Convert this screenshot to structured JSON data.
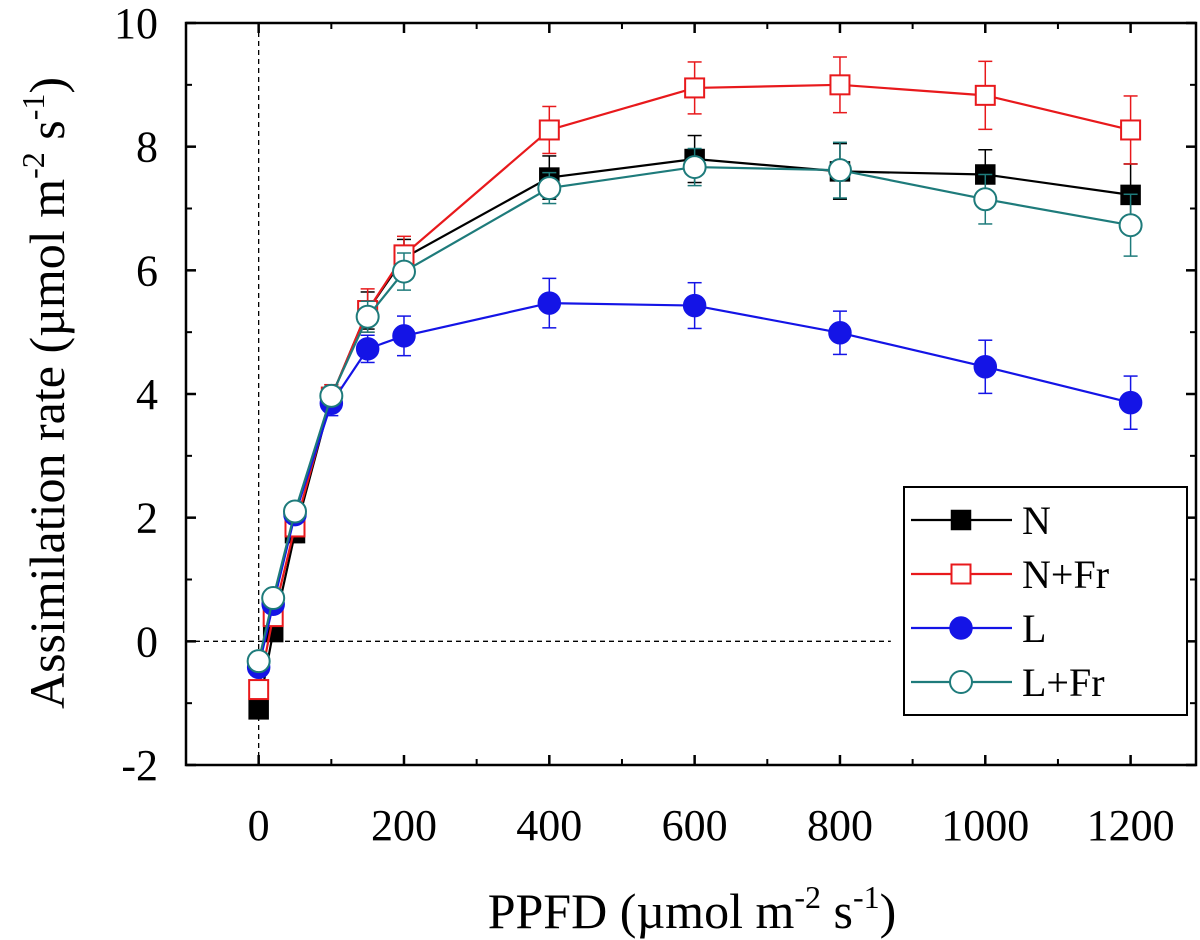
{
  "chart_data": {
    "type": "line",
    "title": "",
    "xlabel": {
      "main": "PPFD (µmol m",
      "exp1": "-2",
      "mid": " s",
      "exp2": "-1",
      "end": ")"
    },
    "ylabel": {
      "main": "Assimilation rate (µmol m",
      "exp1": "-2",
      "mid": " s",
      "exp2": "-1",
      "end": ")"
    },
    "xlim": [
      -100,
      1290
    ],
    "ylim": [
      -2,
      10
    ],
    "xticks": [
      0,
      200,
      400,
      600,
      800,
      1000,
      1200
    ],
    "yticks": [
      -2,
      0,
      2,
      4,
      6,
      8,
      10
    ],
    "xtick_labels": [
      "0",
      "200",
      "400",
      "600",
      "800",
      "1000",
      "1200"
    ],
    "ytick_labels": [
      "-2",
      "0",
      "2",
      "4",
      "6",
      "8",
      "10"
    ],
    "reference_lines": [
      {
        "axis": "x",
        "value": 0
      },
      {
        "axis": "y",
        "value": 0,
        "x_end": 870
      }
    ],
    "legend_position": "bottom-right",
    "x": [
      0,
      20,
      50,
      100,
      150,
      200,
      400,
      600,
      800,
      1000,
      1200
    ],
    "series": [
      {
        "name": "N",
        "color": "#000000",
        "marker": "square-filled",
        "values": [
          -1.1,
          0.15,
          1.75,
          3.95,
          5.35,
          6.2,
          7.5,
          7.8,
          7.6,
          7.55,
          7.22
        ],
        "errors": [
          0.12,
          0.1,
          0.15,
          0.2,
          0.3,
          0.3,
          0.35,
          0.38,
          0.45,
          0.4,
          0.5
        ]
      },
      {
        "name": "N+Fr",
        "color": "#e8191c",
        "marker": "square-open",
        "values": [
          -0.78,
          0.4,
          1.85,
          3.95,
          5.35,
          6.25,
          8.27,
          8.95,
          9.0,
          8.83,
          8.27
        ],
        "errors": [
          0.1,
          0.1,
          0.15,
          0.2,
          0.35,
          0.3,
          0.38,
          0.42,
          0.45,
          0.55,
          0.55
        ]
      },
      {
        "name": "L",
        "color": "#1414e6",
        "marker": "circle-filled",
        "values": [
          -0.42,
          0.6,
          2.05,
          3.85,
          4.73,
          4.94,
          5.47,
          5.43,
          4.99,
          4.44,
          3.86
        ],
        "errors": [
          0.1,
          0.1,
          0.12,
          0.2,
          0.22,
          0.32,
          0.4,
          0.37,
          0.35,
          0.43,
          0.43
        ]
      },
      {
        "name": "L+Fr",
        "color": "#1e7b7b",
        "marker": "circle-open",
        "values": [
          -0.32,
          0.7,
          2.1,
          3.97,
          5.25,
          5.98,
          7.33,
          7.67,
          7.62,
          7.15,
          6.73
        ],
        "errors": [
          0.1,
          0.1,
          0.12,
          0.15,
          0.25,
          0.3,
          0.25,
          0.3,
          0.45,
          0.4,
          0.5
        ]
      }
    ]
  }
}
